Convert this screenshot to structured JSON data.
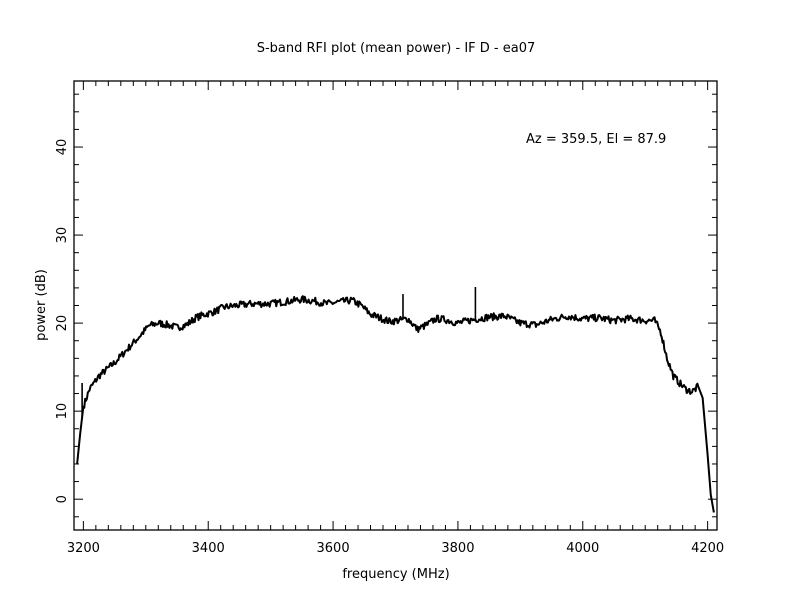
{
  "chart_data": {
    "type": "line",
    "title": "S-band RFI plot (mean power) - IF D - ea07",
    "xlabel": "frequency (MHz)",
    "ylabel": "power (dB)",
    "annotation": "Az = 359.5, El = 87.9",
    "xlim": [
      3185,
      4215
    ],
    "ylim": [
      -3.5,
      47.5
    ],
    "x_ticks": [
      3200,
      3400,
      3600,
      3800,
      4000,
      4200
    ],
    "x_tick_labels": [
      "3200",
      "3400",
      "3600",
      "3800",
      "4000",
      "4200"
    ],
    "y_ticks": [
      0,
      10,
      20,
      30,
      40
    ],
    "y_tick_labels": [
      "0",
      "10",
      "20",
      "30",
      "40"
    ],
    "grid": false,
    "line_color": "#000000",
    "series": [
      {
        "x": [
          3190,
          3195,
          3200,
          3210,
          3225,
          3250,
          3270,
          3290,
          3305,
          3320,
          3335,
          3350,
          3365,
          3380,
          3395,
          3410,
          3425,
          3445,
          3470,
          3500,
          3530,
          3550,
          3570,
          3590,
          3610,
          3630,
          3645,
          3660,
          3675,
          3690,
          3705,
          3720,
          3735,
          3750,
          3765,
          3780,
          3800,
          3825,
          3850,
          3875,
          3900,
          3925,
          3950,
          3975,
          4000,
          4025,
          4050,
          4075,
          4100,
          4115,
          4125,
          4135,
          4145,
          4155,
          4165,
          4175,
          4185,
          4192,
          4200,
          4205,
          4210
        ],
        "y": [
          4.0,
          7.5,
          10.5,
          12.5,
          14.0,
          15.5,
          17.0,
          18.5,
          19.7,
          20.0,
          19.8,
          19.5,
          19.8,
          20.6,
          21.0,
          21.3,
          21.8,
          22.0,
          22.2,
          22.2,
          22.5,
          22.7,
          22.5,
          22.2,
          22.4,
          22.6,
          22.0,
          21.0,
          20.6,
          20.2,
          20.3,
          20.5,
          19.3,
          19.8,
          20.5,
          20.4,
          20.0,
          20.4,
          20.7,
          20.8,
          20.0,
          19.8,
          20.4,
          20.8,
          20.5,
          20.6,
          20.3,
          20.5,
          20.3,
          20.3,
          19.0,
          16.0,
          14.0,
          13.2,
          12.5,
          12.2,
          12.8,
          11.5,
          5.0,
          0.5,
          -1.5
        ]
      }
    ],
    "spikes": [
      {
        "x": 3198,
        "y": 13.2
      },
      {
        "x": 3712,
        "y": 23.3
      },
      {
        "x": 3828,
        "y": 24.1
      }
    ]
  }
}
